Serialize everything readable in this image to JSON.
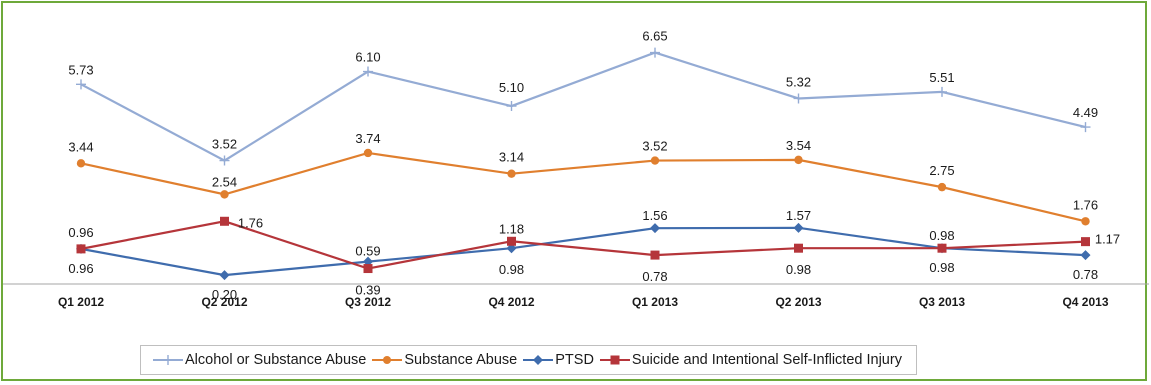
{
  "chart_data": {
    "type": "line",
    "categories": [
      "Q1 2012",
      "Q2 2012",
      "Q3 2012",
      "Q4 2012",
      "Q1 2013",
      "Q2 2013",
      "Q3 2013",
      "Q4 2013"
    ],
    "series": [
      {
        "name": "Alcohol or Substance Abuse",
        "color": "#94abd4",
        "marker": "plus",
        "values": [
          5.73,
          3.52,
          6.1,
          5.1,
          6.65,
          5.32,
          5.51,
          4.49
        ],
        "labels": [
          "5.73",
          "3.52",
          "6.10",
          "5.10",
          "6.65",
          "5.32",
          "5.51",
          "4.49"
        ]
      },
      {
        "name": "Substance Abuse",
        "color": "#e07f2e",
        "marker": "circle",
        "values": [
          3.44,
          2.54,
          3.74,
          3.14,
          3.52,
          3.54,
          2.75,
          1.76
        ],
        "labels": [
          "3.44",
          "2.54",
          "3.74",
          "3.14",
          "3.52",
          "3.54",
          "2.75",
          "1.76"
        ]
      },
      {
        "name": "PTSD",
        "color": "#3f6cad",
        "marker": "diamond",
        "values": [
          0.96,
          0.2,
          0.59,
          0.98,
          1.56,
          1.57,
          0.98,
          0.78
        ],
        "labels": [
          "0.96",
          "0.20",
          "0.59",
          "0.98",
          "1.56",
          "1.57",
          "0.98",
          "0.78"
        ]
      },
      {
        "name": "Suicide and Intentional Self-Inflicted Injury",
        "color": "#b5353a",
        "marker": "square",
        "values": [
          0.96,
          1.76,
          0.39,
          1.18,
          0.78,
          0.98,
          0.98,
          1.17
        ],
        "labels": [
          "0.96",
          "1.76",
          "0.39",
          "1.18",
          "0.78",
          "0.98",
          "0.98",
          "1.17"
        ]
      }
    ],
    "ylim": [
      0,
      7
    ],
    "title": "",
    "xlabel": "",
    "ylabel": "",
    "grid": false,
    "legend_position": "bottom",
    "border_color": "#6ea93a"
  }
}
